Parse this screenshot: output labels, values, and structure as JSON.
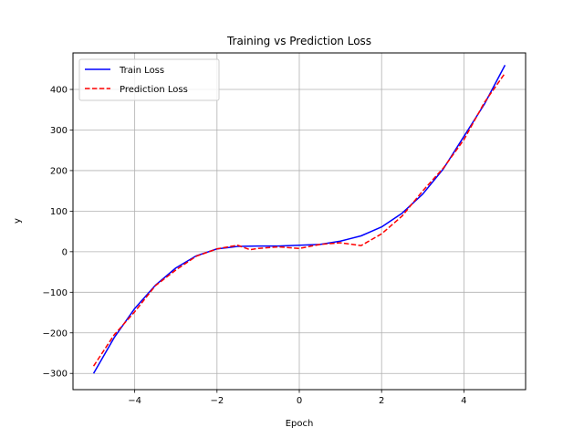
{
  "chart_data": {
    "type": "line",
    "title": "Training vs Prediction Loss",
    "xlabel": "Epoch",
    "ylabel": "y",
    "xlim": [
      -5.5,
      5.5
    ],
    "ylim": [
      -340,
      490
    ],
    "x_ticks": [
      -4,
      -2,
      0,
      2,
      4
    ],
    "x_tick_labels": [
      "−4",
      "−2",
      "0",
      "2",
      "4"
    ],
    "y_ticks": [
      -300,
      -200,
      -100,
      0,
      100,
      200,
      300,
      400
    ],
    "y_tick_labels": [
      "−300",
      "−200",
      "−100",
      "0",
      "100",
      "200",
      "300",
      "400"
    ],
    "grid": true,
    "legend_position": "top-left",
    "series": [
      {
        "name": "Train Loss",
        "color": "#0000ff",
        "style": "solid",
        "x": [
          -5,
          -4.5,
          -4,
          -3.5,
          -3,
          -2.5,
          -2,
          -1.5,
          -1,
          -0.5,
          0,
          0.5,
          1,
          1.5,
          2,
          2.5,
          3,
          3.5,
          4,
          4.5,
          5
        ],
        "y": [
          -300,
          -212,
          -140,
          -83,
          -40,
          -10,
          7,
          13,
          14,
          14,
          16,
          18,
          26,
          39,
          61,
          95,
          142,
          204,
          284,
          364,
          460
        ]
      },
      {
        "name": "Prediction Loss",
        "color": "#ff0000",
        "style": "dashed",
        "x": [
          -5,
          -4.5,
          -4,
          -3.5,
          -3,
          -2.5,
          -2,
          -1.5,
          -1.2,
          -1,
          -0.5,
          0,
          0.5,
          1,
          1.5,
          2,
          2.5,
          3,
          3.5,
          4,
          4.5,
          5
        ],
        "y": [
          -282,
          -205,
          -148,
          -84,
          -45,
          -11,
          7,
          16,
          5,
          8,
          12,
          8,
          18,
          22,
          15,
          44,
          88,
          150,
          206,
          276,
          368,
          440
        ]
      }
    ]
  }
}
